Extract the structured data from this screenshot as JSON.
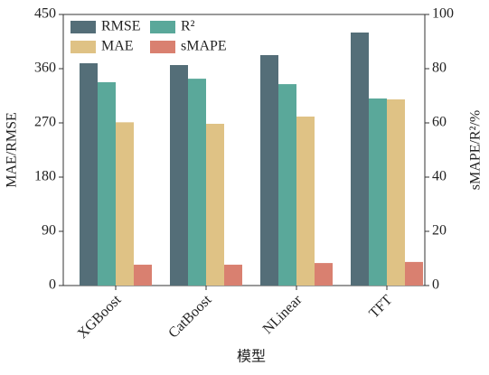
{
  "chart_data": {
    "type": "bar",
    "xlabel": "模型",
    "ylabel": "MAE/RMSE",
    "y2label": "sMAPE/R²/%",
    "categories": [
      "XGBoost",
      "CatBoost",
      "NLinear",
      "TFT"
    ],
    "series": [
      {
        "name": "RMSE",
        "color": "#546e78",
        "values": [
          369,
          366,
          382.5,
          420
        ]
      },
      {
        "name": "R²",
        "color": "#5aa89a",
        "values": [
          75,
          76.3,
          74.3,
          69
        ],
        "axis": "y2"
      },
      {
        "name": "MAE",
        "color": "#dfc285",
        "values": [
          271,
          268.5,
          280.5,
          309
        ]
      },
      {
        "name": "sMAPE",
        "color": "#d98070",
        "values": [
          7.7,
          7.7,
          8.3,
          8.7
        ],
        "axis": "y2"
      }
    ],
    "ylim": [
      0,
      450
    ],
    "yticks": [
      0,
      90,
      180,
      270,
      360,
      450
    ],
    "y2lim": [
      0,
      100
    ],
    "y2ticks": [
      0,
      20,
      40,
      60,
      80,
      100
    ],
    "grid": false,
    "legend": "upper left"
  }
}
